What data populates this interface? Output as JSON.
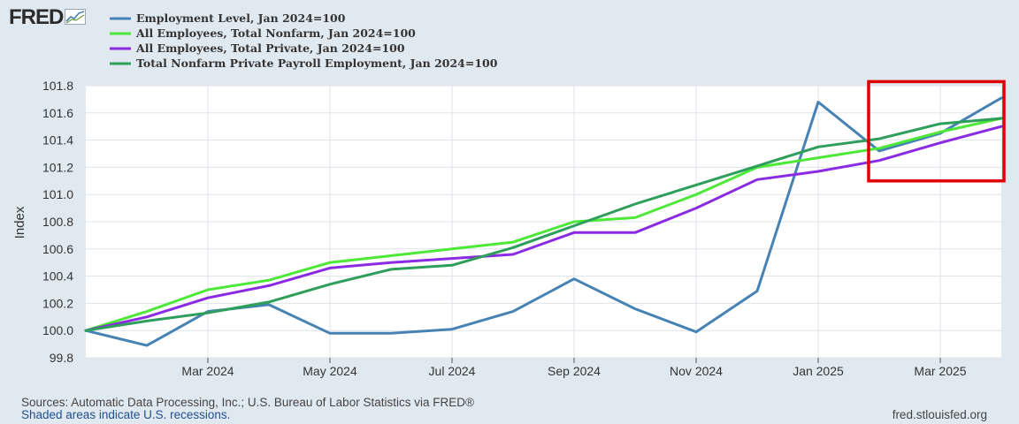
{
  "logo": {
    "text": "FRED"
  },
  "footer": {
    "sources": "Sources: Automatic Data Processing, Inc.; U.S. Bureau of Labor Statistics via FRED®",
    "shaded": "Shaded areas indicate U.S. recessions.",
    "url": "fred.stlouisfed.org"
  },
  "chart_data": {
    "type": "line",
    "ylabel": "Index",
    "ylim": [
      99.8,
      101.8
    ],
    "y_ticks": [
      99.8,
      100.0,
      100.2,
      100.4,
      100.6,
      100.8,
      101.0,
      101.2,
      101.4,
      101.6,
      101.8
    ],
    "y_tick_labels": [
      "99.8",
      "100.0",
      "100.2",
      "100.4",
      "100.6",
      "100.8",
      "101.0",
      "101.2",
      "101.4",
      "101.6",
      "101.8"
    ],
    "x": [
      "2024-01",
      "2024-02",
      "2024-03",
      "2024-04",
      "2024-05",
      "2024-06",
      "2024-07",
      "2024-08",
      "2024-09",
      "2024-10",
      "2024-11",
      "2024-12",
      "2025-01",
      "2025-02",
      "2025-03",
      "2025-04"
    ],
    "x_ticks": [
      {
        "month": "2024-03",
        "label": "Mar 2024"
      },
      {
        "month": "2024-05",
        "label": "May 2024"
      },
      {
        "month": "2024-07",
        "label": "Jul 2024"
      },
      {
        "month": "2024-09",
        "label": "Sep 2024"
      },
      {
        "month": "2024-11",
        "label": "Nov 2024"
      },
      {
        "month": "2025-01",
        "label": "Jan 2025"
      },
      {
        "month": "2025-03",
        "label": "Mar 2025"
      }
    ],
    "grid": true,
    "legend_position": "top-left",
    "series": [
      {
        "name": "Employment Level, Jan 2024=100",
        "color": "#4682b4",
        "values": [
          100.0,
          99.89,
          100.14,
          100.19,
          99.98,
          99.98,
          100.01,
          100.14,
          100.38,
          100.16,
          99.99,
          100.29,
          101.68,
          101.32,
          101.45,
          101.71
        ]
      },
      {
        "name": "All Employees, Total Nonfarm, Jan 2024=100",
        "color": "#4de838",
        "values": [
          100.0,
          100.14,
          100.3,
          100.37,
          100.5,
          100.55,
          100.6,
          100.65,
          100.8,
          100.83,
          101.0,
          101.2,
          101.27,
          101.34,
          101.46,
          101.56
        ]
      },
      {
        "name": "All Employees, Total Private, Jan 2024=100",
        "color": "#8a2be2",
        "values": [
          100.0,
          100.1,
          100.24,
          100.33,
          100.46,
          100.5,
          100.53,
          100.56,
          100.72,
          100.72,
          100.9,
          101.11,
          101.17,
          101.25,
          101.38,
          101.5
        ]
      },
      {
        "name": "Total Nonfarm Private Payroll Employment, Jan 2024=100",
        "color": "#2e9e5b",
        "values": [
          100.0,
          100.07,
          100.13,
          100.21,
          100.34,
          100.45,
          100.48,
          100.61,
          100.77,
          100.93,
          101.07,
          101.21,
          101.35,
          101.41,
          101.52,
          101.56
        ]
      }
    ],
    "annotation": {
      "type": "rectangle",
      "color": "#e00000",
      "x_from": "2025-02",
      "x_to": "2025-04",
      "y_from": 101.1,
      "y_to": 101.83
    }
  }
}
